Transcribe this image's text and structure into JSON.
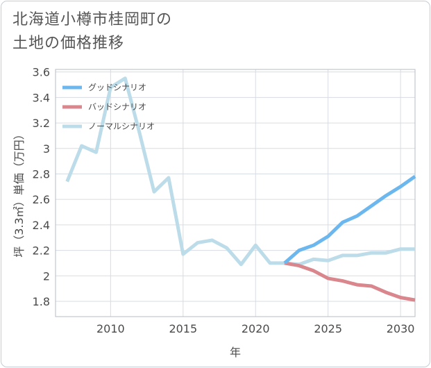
{
  "title": {
    "line1": "北海道小樽市桂岡町の",
    "line2": "土地の価格推移"
  },
  "chart_data": {
    "type": "line",
    "xlabel": "年",
    "ylabel": "坪（3.3㎡）単価（万円）",
    "xlim": [
      2006.2,
      2031
    ],
    "ylim": [
      1.68,
      3.62
    ],
    "xticks": [
      2010,
      2015,
      2020,
      2025,
      2030
    ],
    "yticks": [
      1.8,
      2,
      2.2,
      2.4,
      2.6,
      2.8,
      3,
      3.2,
      3.4,
      3.6
    ],
    "legend_position": "top-left",
    "series": [
      {
        "name": "グッドシナリオ",
        "color": "#6cb8ee",
        "x": [
          2022,
          2023,
          2024,
          2025,
          2026,
          2027,
          2028,
          2029,
          2030,
          2031
        ],
        "values": [
          2.1,
          2.2,
          2.24,
          2.31,
          2.42,
          2.47,
          2.55,
          2.63,
          2.7,
          2.78
        ]
      },
      {
        "name": "バッドシナリオ",
        "color": "#d9868d",
        "x": [
          2022,
          2023,
          2024,
          2025,
          2026,
          2027,
          2028,
          2029,
          2030,
          2031
        ],
        "values": [
          2.1,
          2.08,
          2.04,
          1.98,
          1.96,
          1.93,
          1.92,
          1.87,
          1.83,
          1.81
        ]
      },
      {
        "name": "ノーマルシナリオ",
        "color": "#bcdce9",
        "x": [
          2007,
          2008,
          2009,
          2010,
          2011,
          2012,
          2013,
          2014,
          2015,
          2016,
          2017,
          2018,
          2019,
          2020,
          2021,
          2022,
          2023,
          2024,
          2025,
          2026,
          2027,
          2028,
          2029,
          2030,
          2031
        ],
        "values": [
          2.74,
          3.02,
          2.97,
          3.48,
          3.55,
          3.12,
          2.66,
          2.77,
          2.17,
          2.26,
          2.28,
          2.22,
          2.09,
          2.24,
          2.1,
          2.1,
          2.09,
          2.13,
          2.12,
          2.16,
          2.16,
          2.18,
          2.18,
          2.21,
          2.21
        ]
      }
    ]
  }
}
